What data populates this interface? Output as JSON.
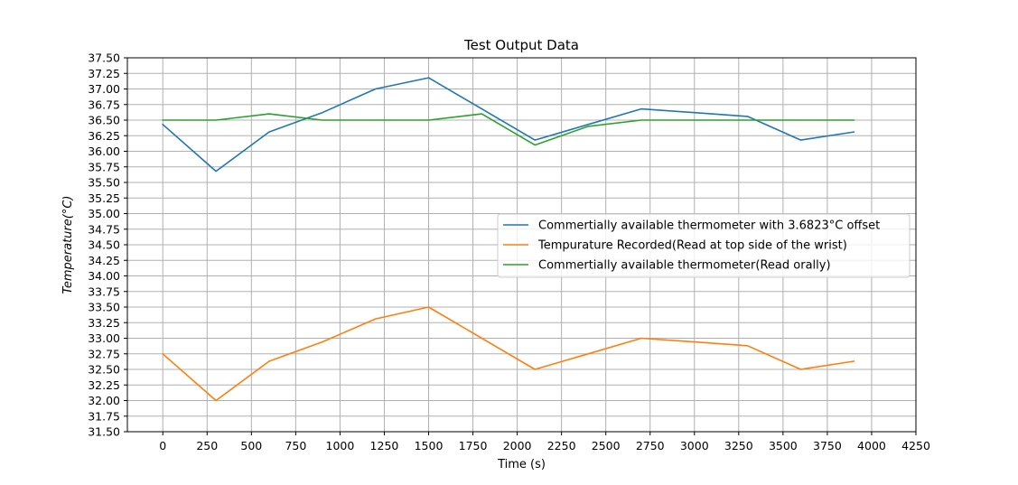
{
  "chart_data": {
    "type": "line",
    "title": "Test Output Data",
    "xlabel": "Time (s)",
    "ylabel": "Temperature(°C)",
    "xlim": [
      -200,
      4250
    ],
    "ylim": [
      31.5,
      37.5
    ],
    "xticks": [
      0,
      250,
      500,
      750,
      1000,
      1250,
      1500,
      1750,
      2000,
      2250,
      2500,
      2750,
      3000,
      3250,
      3500,
      3750,
      4000,
      4250
    ],
    "yticks": [
      31.5,
      31.75,
      32.0,
      32.25,
      32.5,
      32.75,
      33.0,
      33.25,
      33.5,
      33.75,
      34.0,
      34.25,
      34.5,
      34.75,
      35.0,
      35.25,
      35.5,
      35.75,
      36.0,
      36.25,
      36.5,
      36.75,
      37.0,
      37.25,
      37.5
    ],
    "grid": true,
    "legend_position": "center-right",
    "series": [
      {
        "name": "Commertially available thermometer with 3.6823°C offset",
        "color": "#1f77b4",
        "x": [
          0,
          300,
          600,
          900,
          1200,
          1500,
          1800,
          2100,
          2400,
          2700,
          3000,
          3300,
          3600,
          3900
        ],
        "y": [
          36.43,
          35.68,
          36.31,
          36.62,
          37.0,
          37.18,
          36.68,
          36.18,
          36.43,
          36.68,
          36.62,
          36.56,
          36.18,
          36.31
        ]
      },
      {
        "name": "Tempurature Recorded(Read at top side of the wrist)",
        "color": "#ff7f0e",
        "x": [
          0,
          300,
          600,
          900,
          1200,
          1500,
          1800,
          2100,
          2400,
          2700,
          3000,
          3300,
          3600,
          3900
        ],
        "y": [
          32.75,
          32.0,
          32.63,
          32.94,
          33.31,
          33.5,
          33.0,
          32.5,
          32.75,
          33.0,
          32.94,
          32.88,
          32.5,
          32.63
        ]
      },
      {
        "name": "Commertially available thermometer(Read orally)",
        "color": "#2ca02c",
        "x": [
          0,
          300,
          600,
          900,
          1200,
          1500,
          1800,
          2100,
          2400,
          2700,
          3000,
          3300,
          3600,
          3900
        ],
        "y": [
          36.5,
          36.5,
          36.6,
          36.5,
          36.5,
          36.5,
          36.6,
          36.1,
          36.4,
          36.5,
          36.5,
          36.5,
          36.5,
          36.5
        ]
      }
    ]
  }
}
